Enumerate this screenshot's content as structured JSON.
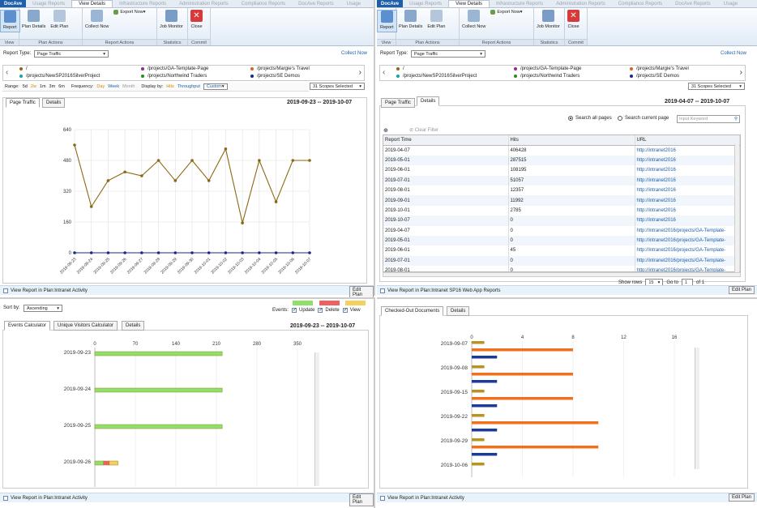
{
  "left_window": {
    "app_name": "DocAve",
    "tabs": [
      "Usage Reports",
      "View Details",
      "Infrastructure Reports",
      "Administration Reports",
      "Compliance Reports",
      "DocAve Reports",
      "Usage"
    ],
    "active_tab": "View Details",
    "ribbon": {
      "groups": [
        {
          "label": "View",
          "buttons": [
            "Report"
          ]
        },
        {
          "label": "Plan Actions",
          "buttons": [
            "Plan Details",
            "Edit Plan"
          ]
        },
        {
          "label": "Report Actions",
          "buttons": [
            "Collect Now",
            "Export Now"
          ]
        },
        {
          "label": "Statistics",
          "buttons": [
            "Job Monitor"
          ]
        },
        {
          "label": "Commit",
          "buttons": [
            "Close"
          ]
        }
      ]
    },
    "report_type_label": "Report Type:",
    "report_type_value": "Page Traffic",
    "collect_now": "Collect Now",
    "scopes": [
      "/",
      "/projects/GA-Template-Page",
      "/projects/Margie's Travel",
      "/projects/NewSP2016SilverProject",
      "/projects/Northwind Traders",
      "/projects/SE Demos"
    ],
    "scope_colors": [
      "#8b6914",
      "#a020a0",
      "#e06020",
      "#1aa0b0",
      "#2a8a2a",
      "#1a2a8a"
    ],
    "scopes_selected": "31 Scopes Selected",
    "range_bar": {
      "range_label": "Range:",
      "ranges": [
        "5d",
        "2w",
        "1m",
        "3m",
        "6m"
      ],
      "frequency_label": "Frequency:",
      "frequencies": [
        "Day",
        "Week",
        "Month"
      ],
      "display_label": "Display by:",
      "displays": [
        "Hits",
        "Throughput"
      ],
      "custom": "Custom"
    },
    "subtabs": [
      "Page Traffic",
      "Details"
    ],
    "date_range": "2019-09-23 -- 2019-10-07",
    "footer_text": "View Report in Plan:Intranet Activity",
    "edit_plan": "Edit Plan"
  },
  "right_window": {
    "app_name": "DocAve",
    "tabs": [
      "Usage Reports",
      "View Details",
      "Infrastructure Reports",
      "Administration Reports",
      "Compliance Reports",
      "DocAve Reports",
      "Usage"
    ],
    "report_type_label": "Report Type:",
    "report_type_value": "Page Traffic",
    "collect_now": "Collect Now",
    "scopes_selected": "31 Scopes Selected",
    "subtabs": [
      "Page Traffic",
      "Details"
    ],
    "date_range": "2019-04-07 -- 2019-10-07",
    "search_all": "Search all pages",
    "search_current": "Search current page",
    "search_placeholder": "Input Keyword",
    "clear_filter": "Clear Filter",
    "table": {
      "columns": [
        "Report Time",
        "Hits",
        "URL"
      ],
      "rows": [
        [
          "2019-04-07",
          "406428",
          "http://intranet2016"
        ],
        [
          "2019-05-01",
          "287515",
          "http://intranet2016"
        ],
        [
          "2019-06-01",
          "108195",
          "http://intranet2016"
        ],
        [
          "2019-07-01",
          "51057",
          "http://intranet2016"
        ],
        [
          "2019-08-01",
          "12357",
          "http://intranet2016"
        ],
        [
          "2019-09-01",
          "11992",
          "http://intranet2016"
        ],
        [
          "2019-10-01",
          "2785",
          "http://intranet2016"
        ],
        [
          "2019-10-07",
          "0",
          "http://intranet2016"
        ],
        [
          "2019-04-07",
          "0",
          "http://intranet2016/projects/GA-Template-"
        ],
        [
          "2019-05-01",
          "0",
          "http://intranet2016/projects/GA-Template-"
        ],
        [
          "2019-06-01",
          "45",
          "http://intranet2016/projects/GA-Template-"
        ],
        [
          "2019-07-01",
          "0",
          "http://intranet2016/projects/GA-Template-"
        ],
        [
          "2019-08-01",
          "0",
          "http://intranet2016/projects/GA-Template-"
        ]
      ]
    },
    "pager": {
      "show_rows": "Show rows",
      "rows_value": "15",
      "goto": "Go to",
      "page": "1",
      "of": "of 1"
    },
    "footer_text": "View Report in Plan:Intranet SP16 Web App Reports",
    "edit_plan": "Edit Plan"
  },
  "bottom_left": {
    "sort_label": "Sort by:",
    "sort_value": "Ascending",
    "events_label": "Events:",
    "events": [
      "Update",
      "Delete",
      "View"
    ],
    "event_colors": [
      "#8ee06a",
      "#f06060",
      "#f5d060"
    ],
    "subtabs": [
      "Events Calculator",
      "Unique Visitors Calculator",
      "Details"
    ],
    "date_range": "2019-09-23 -- 2019-10-07",
    "footer_text": "View Report in Plan:Intranet Activity",
    "edit_plan": "Edit Plan"
  },
  "bottom_right": {
    "subtabs": [
      "Checked-Out Documents",
      "Details"
    ],
    "footer_text": "View Report in Plan:Intranet Activity",
    "edit_plan": "Edit Plan"
  },
  "chart_data": [
    {
      "type": "line",
      "x": [
        "2019-09-23",
        "2019-09-24",
        "2019-09-25",
        "2019-09-26",
        "2019-09-27",
        "2019-09-28",
        "2019-09-29",
        "2019-09-30",
        "2019-10-01",
        "2019-10-02",
        "2019-10-03",
        "2019-10-04",
        "2019-10-05",
        "2019-10-06",
        "2019-10-07"
      ],
      "series": [
        {
          "name": "/",
          "color": "#8b6914",
          "values": [
            560,
            240,
            375,
            420,
            400,
            480,
            375,
            480,
            375,
            540,
            155,
            480,
            265,
            480,
            480
          ]
        },
        {
          "name": "/projects/SE Demos",
          "color": "#1a2a8a",
          "values": [
            0,
            0,
            0,
            0,
            0,
            0,
            0,
            0,
            0,
            0,
            0,
            0,
            0,
            0,
            0
          ]
        }
      ],
      "yticks": [
        0,
        160,
        320,
        480,
        640
      ],
      "ylim": [
        0,
        640
      ]
    },
    {
      "type": "bar",
      "orientation": "horizontal",
      "stacked": true,
      "categories": [
        "2019-09-23",
        "2019-09-24",
        "2019-09-25",
        "2019-09-26"
      ],
      "series": [
        {
          "name": "Update",
          "color": "#8ee06a",
          "values": [
            220,
            220,
            220,
            15
          ]
        },
        {
          "name": "Delete",
          "color": "#f06060",
          "values": [
            0,
            0,
            0,
            10
          ]
        },
        {
          "name": "View",
          "color": "#f5d060",
          "values": [
            0,
            0,
            0,
            15
          ]
        }
      ],
      "xticks": [
        0,
        70,
        140,
        210,
        280,
        350
      ],
      "xlim": [
        0,
        350
      ]
    },
    {
      "type": "bar",
      "orientation": "horizontal",
      "categories": [
        "2019-09-07",
        "2019-09-08",
        "2019-09-15",
        "2019-09-22",
        "2019-09-29",
        "2019-10-06"
      ],
      "series": [
        {
          "color": "#b8941f",
          "values": [
            1,
            1,
            1,
            1,
            1,
            1
          ]
        },
        {
          "color": "#f07020",
          "values": [
            8,
            8,
            8,
            10,
            10,
            null
          ]
        },
        {
          "color": "#1a3aa0",
          "values": [
            2,
            2,
            2,
            2,
            2,
            2
          ]
        }
      ],
      "xticks": [
        0,
        4,
        8,
        12,
        16
      ],
      "xlim": [
        0,
        16
      ]
    }
  ]
}
